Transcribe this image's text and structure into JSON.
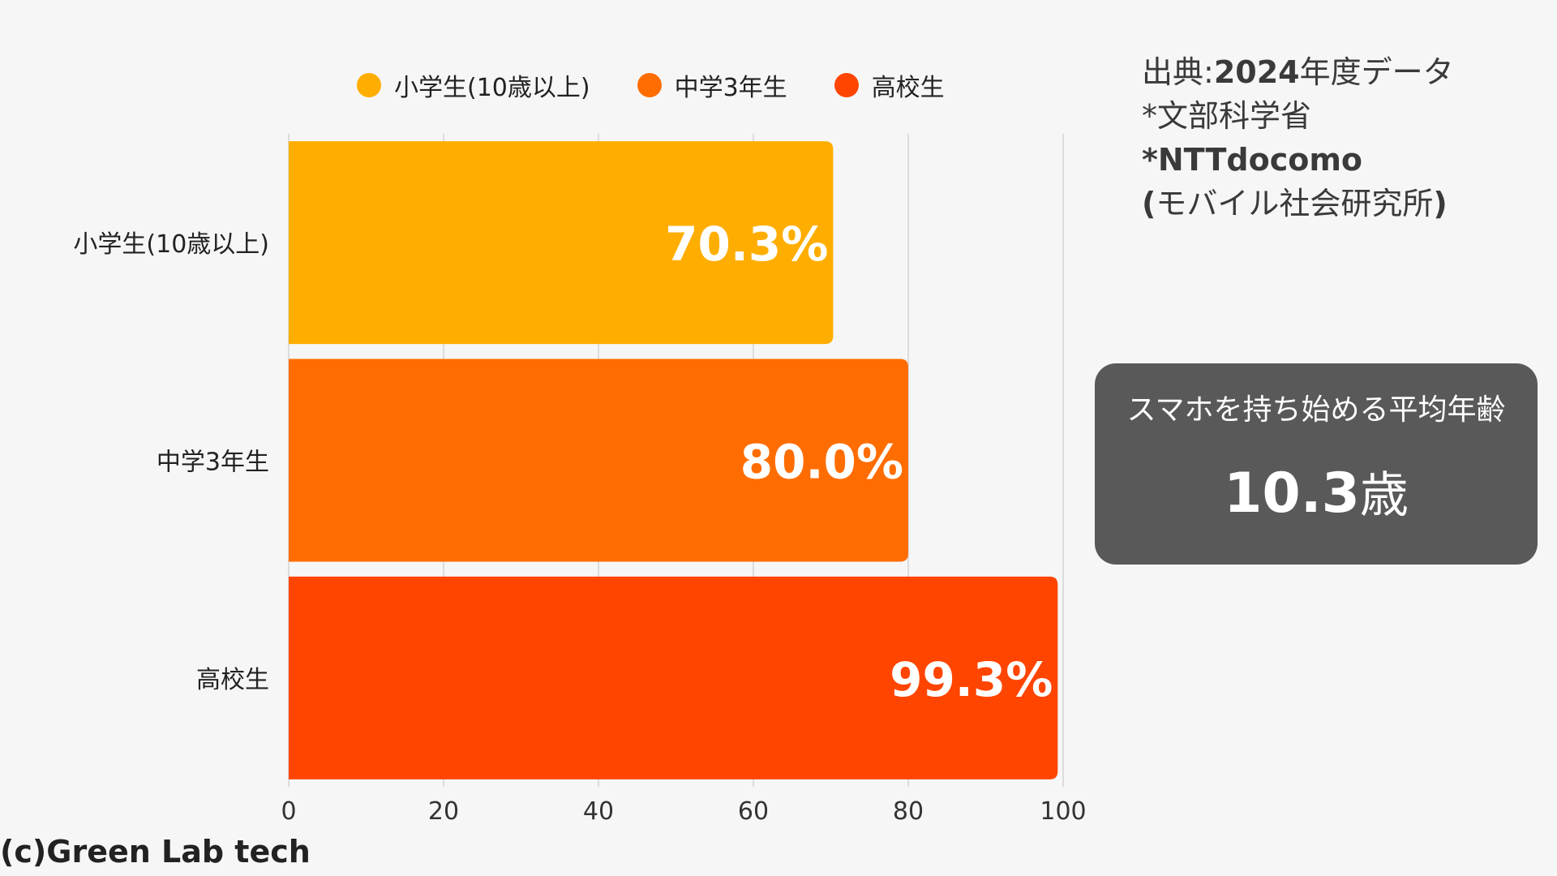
{
  "chart_data": {
    "type": "bar",
    "orientation": "horizontal",
    "categories": [
      "小学生(10歳以上)",
      "中学3年生",
      "高校生"
    ],
    "values": [
      70.3,
      80.0,
      99.3
    ],
    "data_labels": [
      "70.3%",
      "80.0%",
      "99.3%"
    ],
    "colors": [
      "#FFAE00",
      "#FF6D00",
      "#FF4500"
    ],
    "xlim": [
      0,
      100
    ],
    "xticks": [
      0,
      20,
      40,
      60,
      80,
      100
    ],
    "grid": true,
    "legend_position": "top"
  },
  "legend": [
    {
      "label": "小学生(10歳以上)",
      "color": "#FFAE00"
    },
    {
      "label": "中学3年生",
      "color": "#FF6D00"
    },
    {
      "label": "高校生",
      "color": "#FF4500"
    }
  ],
  "source": {
    "line1_prefix": "出典:",
    "line1_year": "2024",
    "line1_suffix": "年度データ",
    "line2": "*文部科学省",
    "line3": "*NTTdocomo",
    "line4_open": "(",
    "line4_text": "モバイル社会研究所",
    "line4_close": ")"
  },
  "callout": {
    "title": "スマホを持ち始める平均年齢",
    "value": "10.3",
    "unit": "歳"
  },
  "credit": "(c)Green Lab tech"
}
